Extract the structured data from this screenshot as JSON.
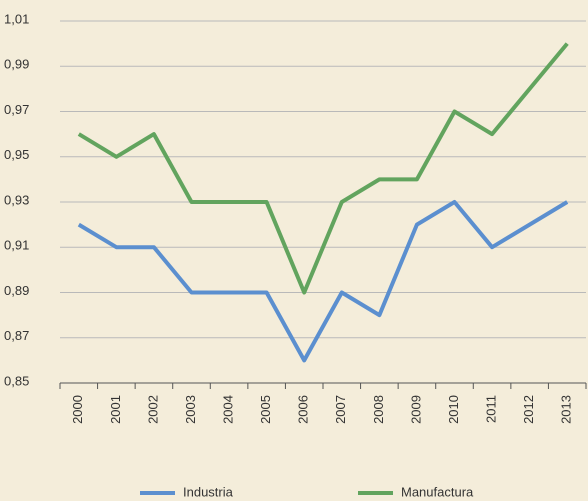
{
  "chart_data": {
    "type": "line",
    "categories": [
      "2000",
      "2001",
      "2002",
      "2003",
      "2004",
      "2005",
      "2006",
      "2007",
      "2008",
      "2009",
      "2010",
      "2011",
      "2012",
      "2013"
    ],
    "series": [
      {
        "name": "Industria",
        "color": "#5b8fcf",
        "values": [
          0.92,
          0.91,
          0.91,
          0.89,
          0.89,
          0.89,
          0.86,
          0.89,
          0.88,
          0.92,
          0.93,
          0.91,
          0.92,
          0.93
        ]
      },
      {
        "name": "Manufactura",
        "color": "#62a45e",
        "values": [
          0.96,
          0.95,
          0.96,
          0.93,
          0.93,
          0.93,
          0.89,
          0.93,
          0.94,
          0.94,
          0.97,
          0.96,
          0.98,
          1.0
        ]
      }
    ],
    "ylim": [
      0.85,
      1.01
    ],
    "yticks": [
      {
        "value": 0.85,
        "label": "0,85"
      },
      {
        "value": 0.87,
        "label": "0,87"
      },
      {
        "value": 0.89,
        "label": "0,89"
      },
      {
        "value": 0.91,
        "label": "0,91"
      },
      {
        "value": 0.93,
        "label": "0,93"
      },
      {
        "value": 0.95,
        "label": "0,95"
      },
      {
        "value": 0.97,
        "label": "0,97"
      },
      {
        "value": 0.99,
        "label": "0,99"
      },
      {
        "value": 1.01,
        "label": "1,01"
      }
    ],
    "grid": true
  }
}
